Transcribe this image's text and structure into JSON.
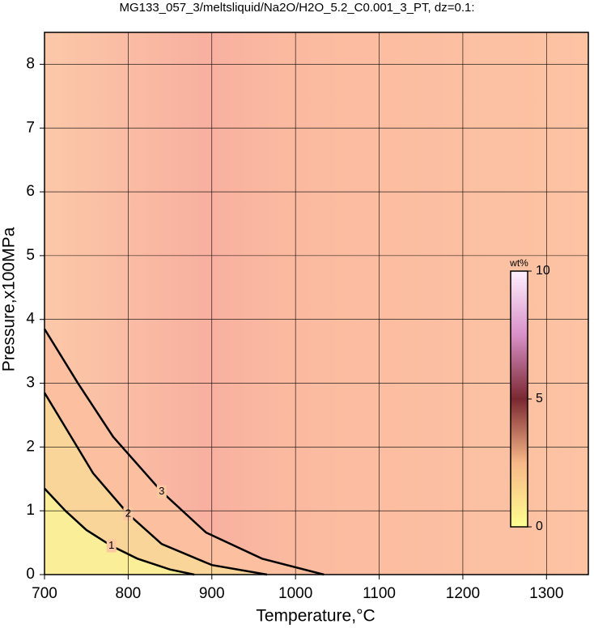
{
  "chart_data": {
    "type": "contour",
    "title": "MG133_057_3/meltsliquid/Na2O/H2O_5.2_C0.001_3_PT, dz=0.1:",
    "x_label": "Temperature,°C",
    "y_label": "Pressure,x100MPa",
    "xlim": [
      700,
      1350
    ],
    "ylim": [
      0,
      8.5
    ],
    "xticks": [
      700,
      800,
      900,
      1000,
      1100,
      1200,
      1300
    ],
    "yticks": [
      0,
      1,
      2,
      3,
      4,
      5,
      6,
      7,
      8
    ],
    "grid": true,
    "contours": [
      {
        "level": 3,
        "x": [
          700,
          740,
          782,
          840,
          893,
          960,
          1034
        ],
        "y": [
          3.85,
          3.0,
          2.16,
          1.3,
          0.66,
          0.25,
          0
        ]
      },
      {
        "level": 2,
        "x": [
          700,
          730,
          758,
          800,
          840,
          900,
          966
        ],
        "y": [
          2.85,
          2.2,
          1.59,
          0.95,
          0.48,
          0.15,
          0
        ]
      },
      {
        "level": 1,
        "x": [
          700,
          725,
          750,
          780,
          811,
          850,
          879
        ],
        "y": [
          1.35,
          1.0,
          0.7,
          0.45,
          0.25,
          0.08,
          0
        ]
      }
    ],
    "colorbar": {
      "label": "wt%",
      "clim": [
        0,
        10
      ],
      "ticks": [
        0,
        5,
        10
      ]
    }
  }
}
